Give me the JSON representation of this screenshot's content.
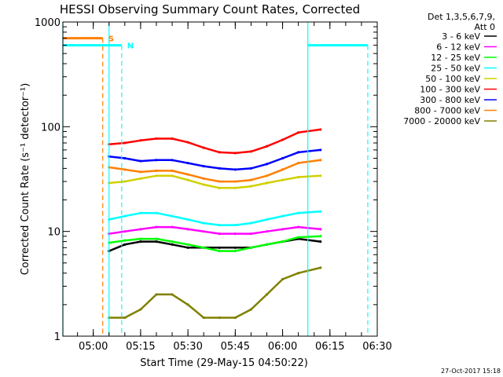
{
  "chart_data": {
    "type": "line",
    "title": "HESSI Observing Summary Count Rates, Corrected",
    "xlabel": "Start Time (29-May-15 04:50:22)",
    "ylabel": "Corrected Count Rate (s⁻¹ detector⁻¹)",
    "yscale": "log",
    "ylim": [
      1,
      1000
    ],
    "yticks": [
      {
        "value": 1,
        "label": "1"
      },
      {
        "value": 10,
        "label": "10"
      },
      {
        "value": 100,
        "label": "100"
      },
      {
        "value": 1000,
        "label": "1000"
      }
    ],
    "xlim": [
      "04:50:22",
      "06:30:00"
    ],
    "xticks": [
      {
        "value": "05:00",
        "label": "05:00"
      },
      {
        "value": "05:15",
        "label": "05:15"
      },
      {
        "value": "05:30",
        "label": "05:30"
      },
      {
        "value": "05:45",
        "label": "05:45"
      },
      {
        "value": "06:00",
        "label": "06:00"
      },
      {
        "value": "06:15",
        "label": "06:15"
      },
      {
        "value": "06:30",
        "label": "06:30"
      }
    ],
    "legend_header": [
      "Det 1,3,5,6,7,9,",
      "Att 0"
    ],
    "legend_position": "right",
    "timestamp": "27-Oct-2017 15:18",
    "series": [
      {
        "name": "3 - 6 keV",
        "color": "#000000",
        "x": [
          "05:05",
          "05:10",
          "05:15",
          "05:20",
          "05:25",
          "05:30",
          "05:35",
          "05:40",
          "05:45",
          "05:50",
          "05:55",
          "06:00",
          "06:05",
          "06:12"
        ],
        "y": [
          6.5,
          7.5,
          8.0,
          8.0,
          7.5,
          7.0,
          7.0,
          7.0,
          7.0,
          7.0,
          7.5,
          8.0,
          8.5,
          8.0
        ]
      },
      {
        "name": "6 - 12 keV",
        "color": "#ff00ff",
        "x": [
          "05:05",
          "05:10",
          "05:15",
          "05:20",
          "05:25",
          "05:30",
          "05:35",
          "05:40",
          "05:45",
          "05:50",
          "05:55",
          "06:00",
          "06:05",
          "06:12"
        ],
        "y": [
          9.5,
          10.0,
          10.5,
          11.0,
          11.0,
          10.5,
          10.0,
          9.5,
          9.5,
          9.5,
          10.0,
          10.5,
          11.0,
          10.5
        ]
      },
      {
        "name": "12 - 25 keV",
        "color": "#00ff00",
        "x": [
          "05:05",
          "05:10",
          "05:15",
          "05:20",
          "05:25",
          "05:30",
          "05:35",
          "05:40",
          "05:45",
          "05:50",
          "05:55",
          "06:00",
          "06:05",
          "06:12"
        ],
        "y": [
          7.8,
          8.2,
          8.5,
          8.5,
          8.0,
          7.5,
          7.0,
          6.5,
          6.5,
          7.0,
          7.5,
          8.0,
          8.8,
          9.0
        ]
      },
      {
        "name": "25 - 50 keV",
        "color": "#00ffff",
        "x": [
          "05:05",
          "05:10",
          "05:15",
          "05:20",
          "05:25",
          "05:30",
          "05:35",
          "05:40",
          "05:45",
          "05:50",
          "05:55",
          "06:00",
          "06:05",
          "06:12"
        ],
        "y": [
          13,
          14,
          15,
          15,
          14,
          13,
          12,
          11.5,
          11.5,
          12,
          13,
          14,
          15,
          15.5
        ]
      },
      {
        "name": "50 - 100 keV",
        "color": "#d0d000",
        "x": [
          "05:05",
          "05:10",
          "05:15",
          "05:20",
          "05:25",
          "05:30",
          "05:35",
          "05:40",
          "05:45",
          "05:50",
          "05:55",
          "06:00",
          "06:05",
          "06:12"
        ],
        "y": [
          29,
          30,
          32,
          34,
          34,
          31,
          28,
          26,
          26,
          27,
          29,
          31,
          33,
          34
        ]
      },
      {
        "name": "100 - 300 keV",
        "color": "#ff0000",
        "x": [
          "05:05",
          "05:10",
          "05:15",
          "05:20",
          "05:25",
          "05:30",
          "05:35",
          "05:40",
          "05:45",
          "05:50",
          "05:55",
          "06:00",
          "06:05",
          "06:12"
        ],
        "y": [
          68,
          70,
          74,
          77,
          77,
          71,
          63,
          57,
          56,
          58,
          65,
          75,
          88,
          94
        ]
      },
      {
        "name": "300 - 800 keV",
        "color": "#0000ff",
        "x": [
          "05:05",
          "05:10",
          "05:15",
          "05:20",
          "05:25",
          "05:30",
          "05:35",
          "05:40",
          "05:45",
          "05:50",
          "05:55",
          "06:00",
          "06:05",
          "06:12"
        ],
        "y": [
          52,
          50,
          47,
          48,
          48,
          45,
          42,
          40,
          39,
          40,
          44,
          50,
          57,
          60
        ]
      },
      {
        "name": "800 - 7000 keV",
        "color": "#ff8000",
        "x": [
          "05:05",
          "05:10",
          "05:15",
          "05:20",
          "05:25",
          "05:30",
          "05:35",
          "05:40",
          "05:45",
          "05:50",
          "05:55",
          "06:00",
          "06:05",
          "06:12"
        ],
        "y": [
          41,
          39,
          37,
          38,
          38,
          35,
          32,
          30,
          30,
          31,
          34,
          39,
          45,
          48
        ]
      },
      {
        "name": "7000 - 20000 keV",
        "color": "#808000",
        "x": [
          "05:05",
          "05:10",
          "05:15",
          "05:20",
          "05:25",
          "05:30",
          "05:35",
          "05:40",
          "05:45",
          "05:50",
          "05:55",
          "06:00",
          "06:05",
          "06:12"
        ],
        "y": [
          1.5,
          1.5,
          1.8,
          2.5,
          2.5,
          2.0,
          1.5,
          1.5,
          1.5,
          1.8,
          2.5,
          3.5,
          4.0,
          4.5
        ]
      }
    ],
    "markers": [
      {
        "label": "S",
        "color": "#ff8000",
        "value": 700,
        "x_start": "04:50:22",
        "x_end": "05:03",
        "dashed_time": "05:03"
      },
      {
        "label": "N",
        "color": "#00ffff",
        "value": 600,
        "x_start": "04:50:22",
        "x_end": "05:09",
        "dashed_time": "05:09"
      },
      {
        "label": "",
        "color": "#00ffff",
        "value": 600,
        "x_start": "06:08",
        "x_end": "06:27",
        "dashed_time": "06:27"
      }
    ],
    "vertical_lines": [
      {
        "time": "04:50:22",
        "color": "#00ffff",
        "style": "solid"
      },
      {
        "time": "05:05",
        "color": "#00ffff",
        "style": "solid"
      },
      {
        "time": "06:08",
        "color": "#00ffff",
        "style": "solid"
      }
    ],
    "grid": false
  }
}
